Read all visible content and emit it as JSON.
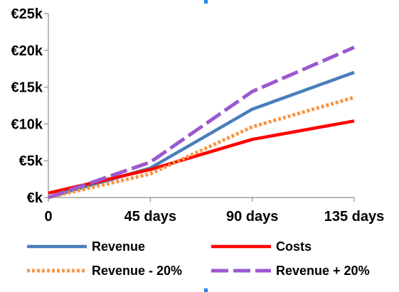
{
  "chart_data": {
    "type": "line",
    "title": "",
    "xlabel": "",
    "ylabel": "",
    "x": [
      0,
      45,
      90,
      135
    ],
    "x_tick_labels": [
      "0",
      "45 days",
      "90 days",
      "135 days"
    ],
    "xlim": [
      0,
      135
    ],
    "y_ticks": [
      0,
      5000,
      10000,
      15000,
      20000,
      25000
    ],
    "y_tick_labels": [
      "€k",
      "€5k",
      "€10k",
      "€15k",
      "€20k",
      "€25k"
    ],
    "ylim": [
      0,
      25000
    ],
    "grid": false,
    "legend_position": "bottom",
    "series": [
      {
        "name": "Revenue",
        "values": [
          0,
          4000,
          12000,
          17000
        ],
        "color": "#4a7ebb",
        "style": "solid"
      },
      {
        "name": "Costs",
        "values": [
          600,
          3800,
          7900,
          10400
        ],
        "color": "#ff0000",
        "style": "solid"
      },
      {
        "name": "Revenue - 20%",
        "values": [
          0,
          3200,
          9600,
          13600
        ],
        "color": "#f79646",
        "style": "dotted"
      },
      {
        "name": "Revenue + 20%",
        "values": [
          0,
          4800,
          14400,
          20400
        ],
        "color": "#9b59d0",
        "style": "dashed"
      }
    ]
  }
}
